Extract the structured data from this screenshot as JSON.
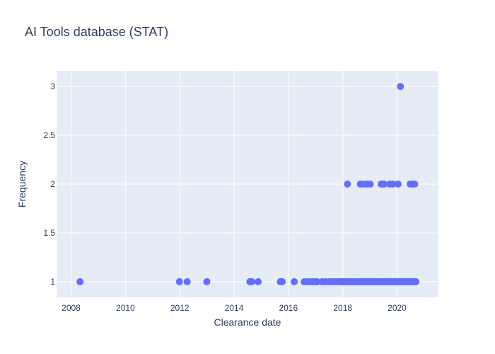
{
  "chart_data": {
    "type": "scatter",
    "title": "AI Tools database (STAT)",
    "xlabel": "Clearance date",
    "ylabel": "Frequency",
    "x_is_date": true,
    "xlim": [
      "2007-06-20",
      "2021-07-10"
    ],
    "ylim": [
      0.84,
      3.16
    ],
    "x_ticks": [
      "2008",
      "2010",
      "2012",
      "2014",
      "2016",
      "2018",
      "2020"
    ],
    "y_ticks": [
      1,
      1.5,
      2,
      2.5,
      3
    ],
    "marker_color": "#636efa",
    "background_color": "#e5ecf6",
    "grid": true,
    "series": [
      {
        "x": [
          "2008-05-01",
          "2011-12-28",
          "2012-04-10",
          "2012-12-30",
          "2014-08-01",
          "2014-08-25",
          "2014-11-20",
          "2015-09-15",
          "2015-10-10",
          "2016-03-20",
          "2016-08-01",
          "2016-09-15",
          "2016-10-20",
          "2016-11-25",
          "2016-12-30",
          "2017-01-20",
          "2017-04-01",
          "2017-05-15",
          "2017-07-01",
          "2017-08-10",
          "2017-09-20",
          "2017-11-01",
          "2017-12-10",
          "2018-01-05",
          "2018-02-01",
          "2018-03-01",
          "2018-04-01",
          "2018-05-05",
          "2018-06-10",
          "2018-07-15",
          "2018-08-20",
          "2018-09-20",
          "2018-10-20",
          "2018-11-20",
          "2018-12-20",
          "2019-01-20",
          "2019-02-20",
          "2019-03-20",
          "2019-04-20",
          "2019-05-20",
          "2019-06-20",
          "2019-07-20",
          "2019-08-20",
          "2019-09-20",
          "2019-10-20",
          "2019-11-20",
          "2019-12-20",
          "2020-01-15",
          "2020-02-15",
          "2020-03-15",
          "2020-04-15",
          "2020-05-15",
          "2020-06-15",
          "2020-07-15",
          "2020-08-15",
          "2020-09-10",
          "2018-03-05",
          "2018-08-25",
          "2018-10-01",
          "2018-11-20",
          "2019-01-05",
          "2019-06-01",
          "2019-07-10",
          "2019-09-25",
          "2019-11-05",
          "2020-01-15",
          "2020-06-25",
          "2020-08-01",
          "2020-08-25",
          "2020-02-15"
        ],
        "y": [
          1,
          1,
          1,
          1,
          1,
          1,
          1,
          1,
          1,
          1,
          1,
          1,
          1,
          1,
          1,
          1,
          1,
          1,
          1,
          1,
          1,
          1,
          1,
          1,
          1,
          1,
          1,
          1,
          1,
          1,
          1,
          1,
          1,
          1,
          1,
          1,
          1,
          1,
          1,
          1,
          1,
          1,
          1,
          1,
          1,
          1,
          1,
          1,
          1,
          1,
          1,
          1,
          1,
          1,
          1,
          1,
          2,
          2,
          2,
          2,
          2,
          2,
          2,
          2,
          2,
          2,
          2,
          2,
          2,
          3
        ]
      }
    ]
  }
}
